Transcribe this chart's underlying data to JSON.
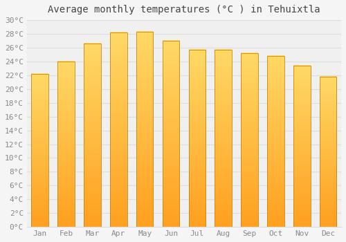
{
  "title": "Average monthly temperatures (°C ) in Tehuixtla",
  "months": [
    "Jan",
    "Feb",
    "Mar",
    "Apr",
    "May",
    "Jun",
    "Jul",
    "Aug",
    "Sep",
    "Oct",
    "Nov",
    "Dec"
  ],
  "values": [
    22.2,
    24.0,
    26.6,
    28.2,
    28.3,
    27.0,
    25.7,
    25.7,
    25.2,
    24.8,
    23.4,
    21.8
  ],
  "bar_color_top": "#FFD966",
  "bar_color_bottom": "#FFA020",
  "bar_edge_color": "#C8860A",
  "ylim": [
    0,
    30
  ],
  "ytick_step": 2,
  "background_color": "#f5f5f5",
  "plot_bg_color": "#f0f0f0",
  "grid_color": "#dddddd",
  "title_fontsize": 10,
  "tick_fontsize": 8,
  "font_family": "monospace",
  "tick_color": "#888888"
}
